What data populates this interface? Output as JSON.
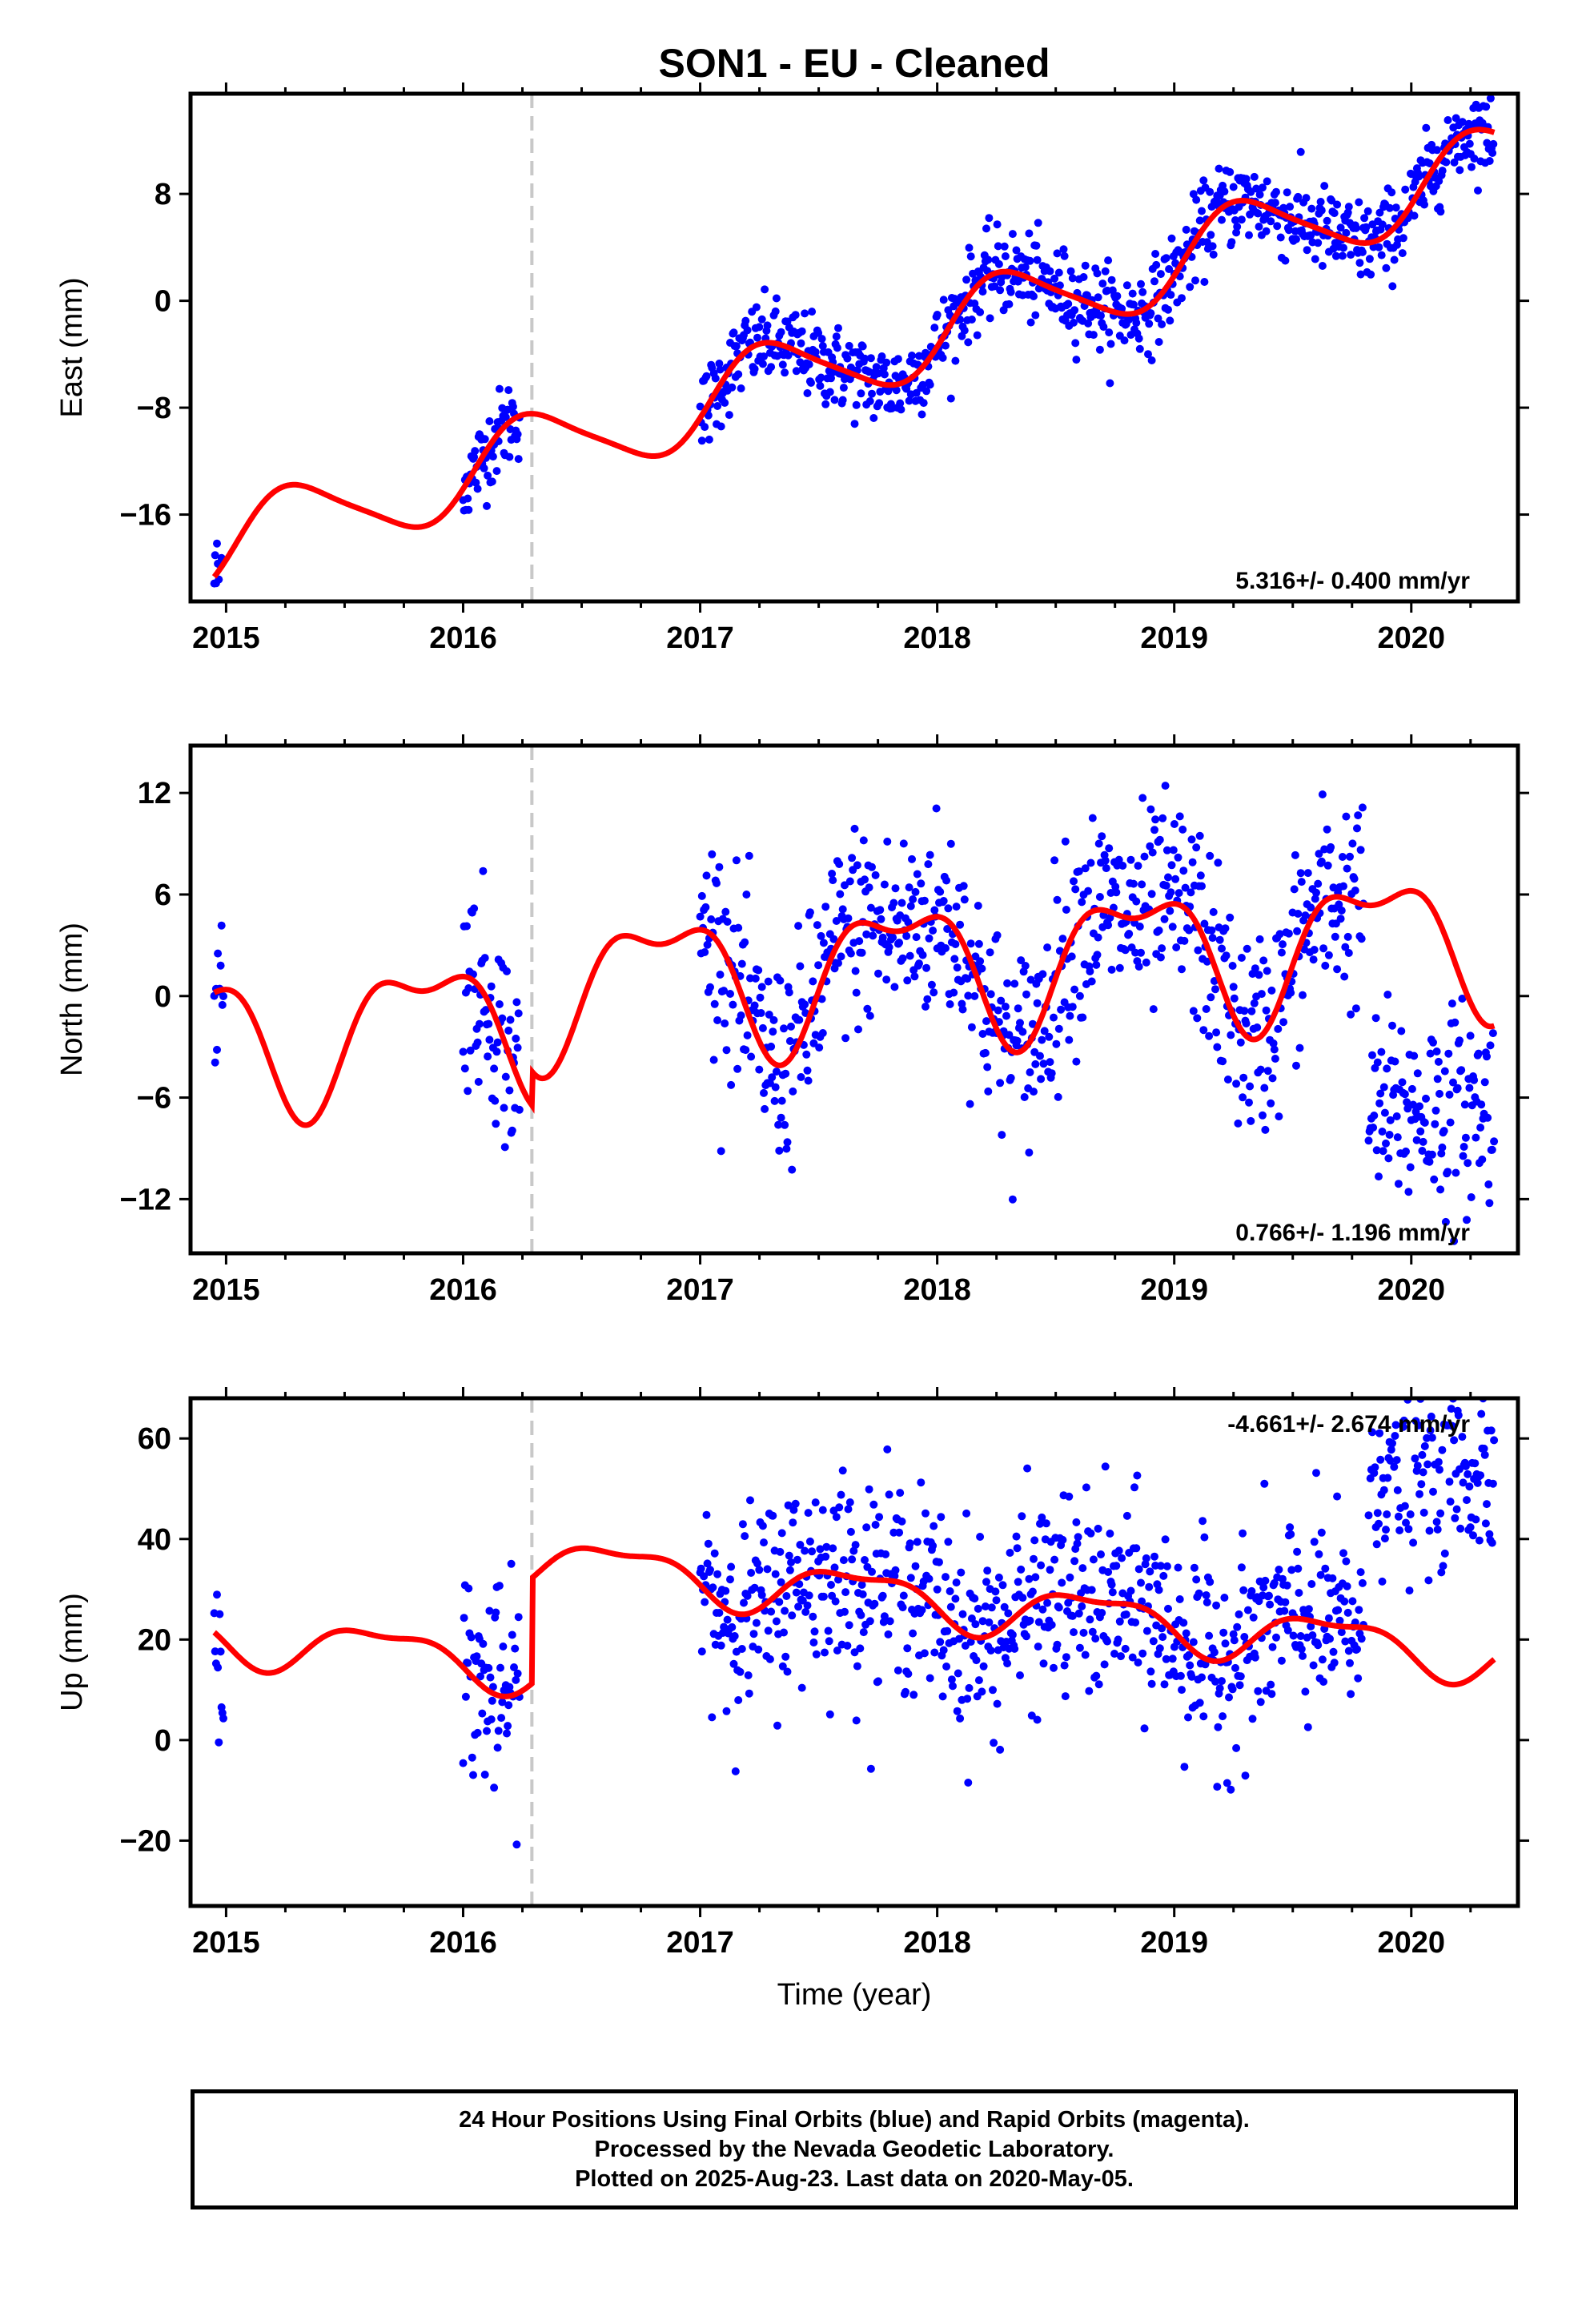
{
  "figure": {
    "title": "SON1  - EU - Cleaned",
    "xlabel": "Time (year)",
    "caption": [
      "24 Hour Positions Using Final Orbits (blue) and Rapid Orbits (magenta).",
      "Processed by the Nevada Geodetic Laboratory.",
      "Plotted on 2025-Aug-23. Last data on 2020-May-05."
    ],
    "colors": {
      "data": "#0000ff",
      "model": "#ff0000",
      "event_line": "#c8c8c8",
      "frame": "#000000"
    }
  },
  "chart_data": [
    {
      "type": "scatter",
      "panel": "East",
      "ylabel": "East (mm)",
      "xlim": [
        2014.85,
        2020.45
      ],
      "ylim": [
        -22.5,
        15.5
      ],
      "x_ticks": [
        2015,
        2016,
        2017,
        2018,
        2019,
        2020
      ],
      "y_ticks": [
        -16,
        -8,
        0,
        8
      ],
      "x_tick_labels": [
        "2015",
        "2016",
        "2017",
        "2018",
        "2019",
        "2020"
      ],
      "y_tick_labels": [
        "-16",
        "-8",
        "0",
        "8"
      ],
      "rate_label": "5.316+/- 0.400 mm/yr",
      "event_line_x": 2016.29,
      "data_segments": [
        [
          2014.95,
          2014.99
        ],
        [
          2016.0,
          2016.24
        ],
        [
          2017.0,
          2020.35
        ]
      ],
      "model_curve": {
        "t0": 2017.5,
        "offset": -5.0,
        "rate": 5.316,
        "annual_sin": -2.8,
        "annual_cos": 0.8,
        "semiannual_sin": 0.4,
        "semiannual_cos": -0.3,
        "steps": [
          {
            "x": 2016.29,
            "dy": 0
          }
        ]
      },
      "scatter_sd": 1.6,
      "points_note": "daily positions",
      "series": [
        {
          "name": "",
          "color": "#0000ff"
        }
      ]
    },
    {
      "type": "scatter",
      "panel": "North",
      "ylabel": "North (mm)",
      "xlim": [
        2014.85,
        2020.45
      ],
      "ylim": [
        -15.2,
        14.8
      ],
      "x_ticks": [
        2015,
        2016,
        2017,
        2018,
        2019,
        2020
      ],
      "y_ticks": [
        -12,
        -6,
        0,
        6,
        12
      ],
      "x_tick_labels": [
        "2015",
        "2016",
        "2017",
        "2018",
        "2019",
        "2020"
      ],
      "y_tick_labels": [
        "-12",
        "-6",
        "0",
        "6",
        "12"
      ],
      "rate_label": "0.766+/- 1.196 mm/yr",
      "event_line_x": 2016.29,
      "data_segments": [
        [
          2014.95,
          2014.99
        ],
        [
          2016.0,
          2016.24
        ],
        [
          2017.0,
          2019.8
        ],
        [
          2019.82,
          2020.35
        ]
      ],
      "model_curve": {
        "t0": 2017.5,
        "offset": -0.5,
        "rate": 0.766,
        "annual_sin": 3.2,
        "annual_cos": -2.0,
        "semiannual_sin": 1.5,
        "semiannual_cos": 0.8,
        "steps": [
          {
            "x": 2016.29,
            "dy": 2.0
          }
        ]
      },
      "scatter_sd": 3.0,
      "late_offset": {
        "from": 2019.82,
        "mean": -6.8
      },
      "series": [
        {
          "name": "",
          "color": "#0000ff"
        }
      ]
    },
    {
      "type": "scatter",
      "panel": "Up",
      "ylabel": "Up (mm)",
      "xlim": [
        2014.85,
        2020.45
      ],
      "ylim": [
        -33,
        68
      ],
      "x_ticks": [
        2015,
        2016,
        2017,
        2018,
        2019,
        2020
      ],
      "y_ticks": [
        -20,
        0,
        20,
        40,
        60
      ],
      "x_tick_labels": [
        "2015",
        "2016",
        "2017",
        "2018",
        "2019",
        "2020"
      ],
      "y_tick_labels": [
        "-20",
        "0",
        "20",
        "40",
        "60"
      ],
      "rate_label": "-4.661+/- 2.674 mm/yr",
      "event_line_x": 2016.29,
      "data_segments": [
        [
          2014.95,
          2014.99
        ],
        [
          2016.0,
          2016.24
        ],
        [
          2017.0,
          2019.8
        ],
        [
          2019.82,
          2020.35
        ]
      ],
      "model_curve": {
        "t0": 2017.5,
        "offset": 9.0,
        "rate": -4.661,
        "annual_sin": 4.0,
        "annual_cos": 2.5,
        "semiannual_sin": -1.5,
        "semiannual_cos": 1.0,
        "steps": [
          {
            "x": 2016.29,
            "dy": 21.0
          }
        ]
      },
      "scatter_sd": 10.0,
      "late_offset": {
        "from": 2019.82,
        "mean": 54.0
      },
      "series": [
        {
          "name": "",
          "color": "#0000ff"
        }
      ]
    }
  ]
}
